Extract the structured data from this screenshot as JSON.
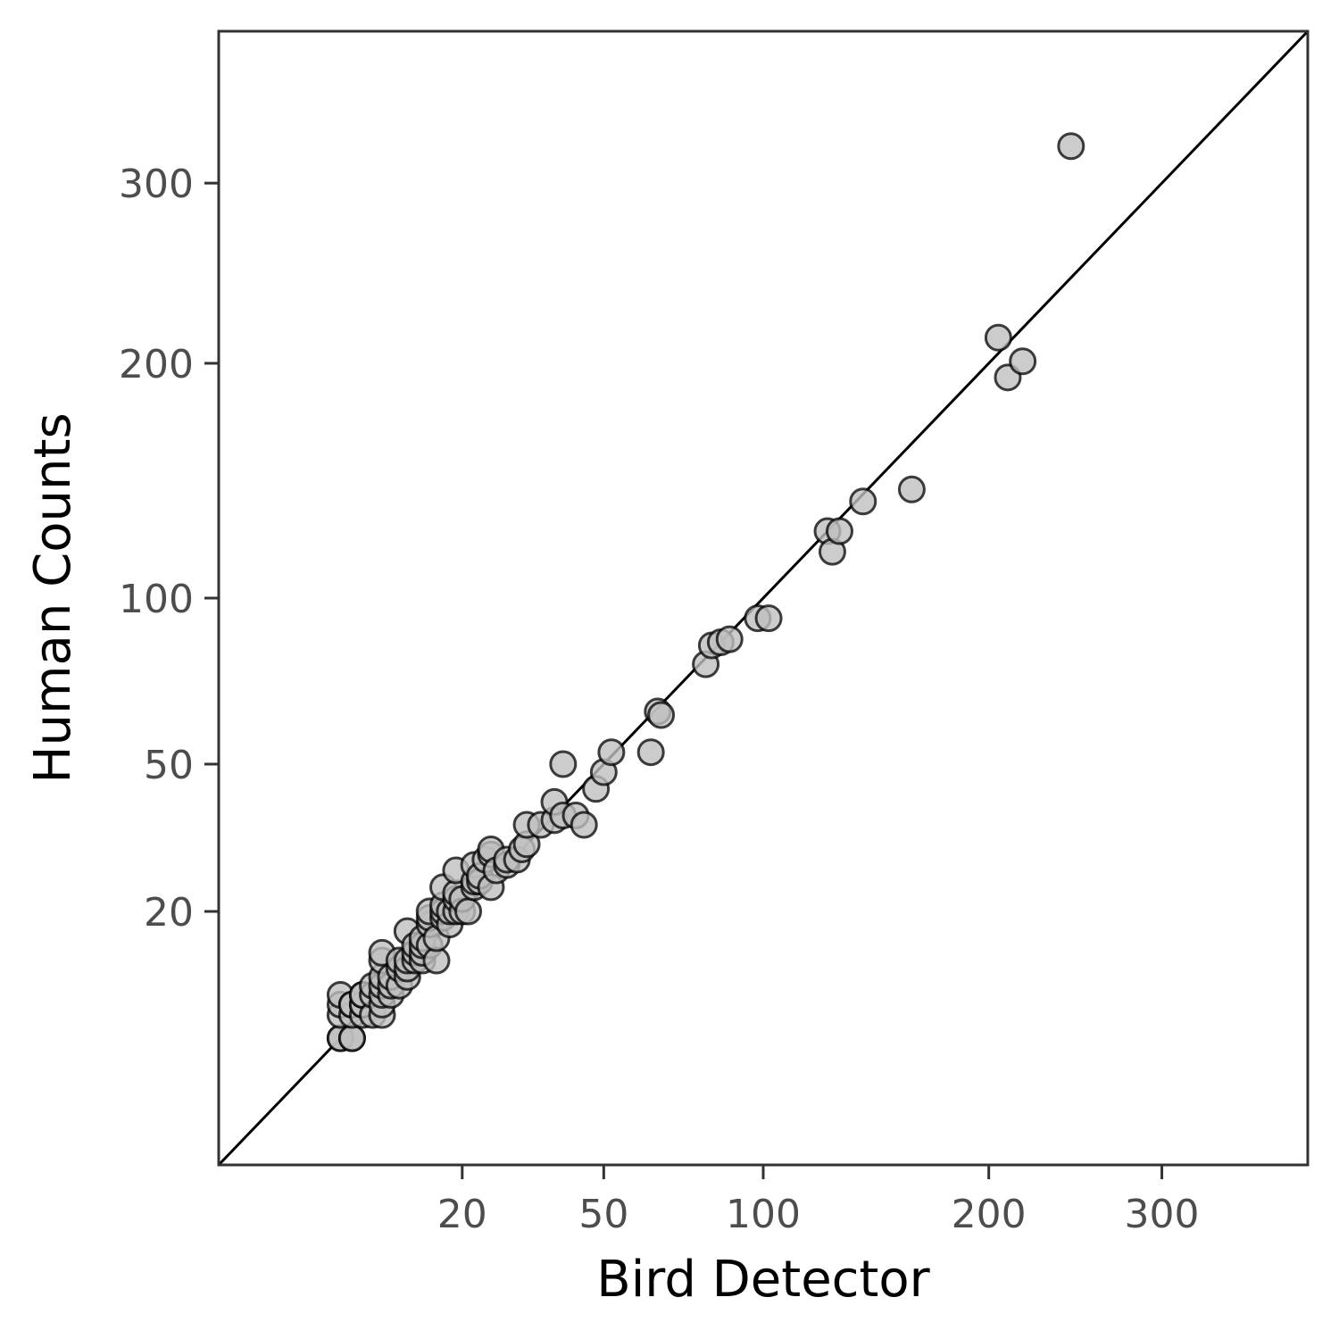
{
  "chart_data": {
    "type": "scatter",
    "xlabel": "Bird Detector",
    "ylabel": "Human Counts",
    "scale": "sqrt",
    "xlim": [
      0,
      400
    ],
    "ylim": [
      0,
      400
    ],
    "x_ticks": [
      20,
      50,
      100,
      200,
      300
    ],
    "y_ticks": [
      20,
      50,
      100,
      200,
      300
    ],
    "reference_line": "y = x",
    "grid": false,
    "colors": {
      "point_fill": "#bfbfbf",
      "point_stroke": "#000000",
      "line": "#000000",
      "frame": "#333333"
    },
    "points": [
      [
        5,
        5
      ],
      [
        5,
        5
      ],
      [
        5,
        7
      ],
      [
        5,
        8
      ],
      [
        5,
        9
      ],
      [
        6,
        5
      ],
      [
        6,
        5
      ],
      [
        6,
        7
      ],
      [
        6,
        8
      ],
      [
        6,
        8
      ],
      [
        7,
        7
      ],
      [
        7,
        8
      ],
      [
        7,
        8
      ],
      [
        7,
        9
      ],
      [
        7,
        9
      ],
      [
        8,
        7
      ],
      [
        8,
        9
      ],
      [
        8,
        10
      ],
      [
        9,
        7
      ],
      [
        9,
        8
      ],
      [
        9,
        9
      ],
      [
        9,
        10
      ],
      [
        9,
        11
      ],
      [
        9,
        13
      ],
      [
        9,
        14
      ],
      [
        10,
        9
      ],
      [
        10,
        10
      ],
      [
        10,
        11
      ],
      [
        11,
        10
      ],
      [
        11,
        12
      ],
      [
        11,
        13
      ],
      [
        12,
        11
      ],
      [
        12,
        12
      ],
      [
        12,
        13
      ],
      [
        12,
        17
      ],
      [
        13,
        13
      ],
      [
        13,
        14
      ],
      [
        13,
        15
      ],
      [
        14,
        13
      ],
      [
        14,
        14
      ],
      [
        14,
        15
      ],
      [
        14,
        16
      ],
      [
        15,
        15
      ],
      [
        15,
        18
      ],
      [
        15,
        19
      ],
      [
        15,
        20
      ],
      [
        16,
        13
      ],
      [
        16,
        16
      ],
      [
        17,
        19
      ],
      [
        17,
        20
      ],
      [
        17,
        21
      ],
      [
        17,
        24
      ],
      [
        18,
        18
      ],
      [
        18,
        20
      ],
      [
        19,
        20
      ],
      [
        19,
        22
      ],
      [
        19,
        23
      ],
      [
        19,
        27
      ],
      [
        20,
        20
      ],
      [
        20,
        22
      ],
      [
        21,
        20
      ],
      [
        22,
        24
      ],
      [
        22,
        25
      ],
      [
        22,
        28
      ],
      [
        23,
        25
      ],
      [
        23,
        26
      ],
      [
        24,
        29
      ],
      [
        25,
        24
      ],
      [
        25,
        30
      ],
      [
        25,
        31
      ],
      [
        26,
        27
      ],
      [
        28,
        28
      ],
      [
        28,
        29
      ],
      [
        30,
        29
      ],
      [
        31,
        31
      ],
      [
        32,
        32
      ],
      [
        32,
        36
      ],
      [
        35,
        36
      ],
      [
        38,
        37
      ],
      [
        38,
        41
      ],
      [
        40,
        38
      ],
      [
        40,
        50
      ],
      [
        43,
        38
      ],
      [
        45,
        36
      ],
      [
        48,
        44
      ],
      [
        50,
        48
      ],
      [
        52,
        53
      ],
      [
        63,
        53
      ],
      [
        65,
        64
      ],
      [
        66,
        63
      ],
      [
        80,
        78
      ],
      [
        82,
        84
      ],
      [
        85,
        85
      ],
      [
        88,
        86
      ],
      [
        98,
        93
      ],
      [
        102,
        93
      ],
      [
        125,
        125
      ],
      [
        127,
        117
      ],
      [
        130,
        125
      ],
      [
        140,
        137
      ],
      [
        162,
        142
      ],
      [
        205,
        213
      ],
      [
        210,
        193
      ],
      [
        218,
        201
      ],
      [
        245,
        323
      ]
    ]
  }
}
